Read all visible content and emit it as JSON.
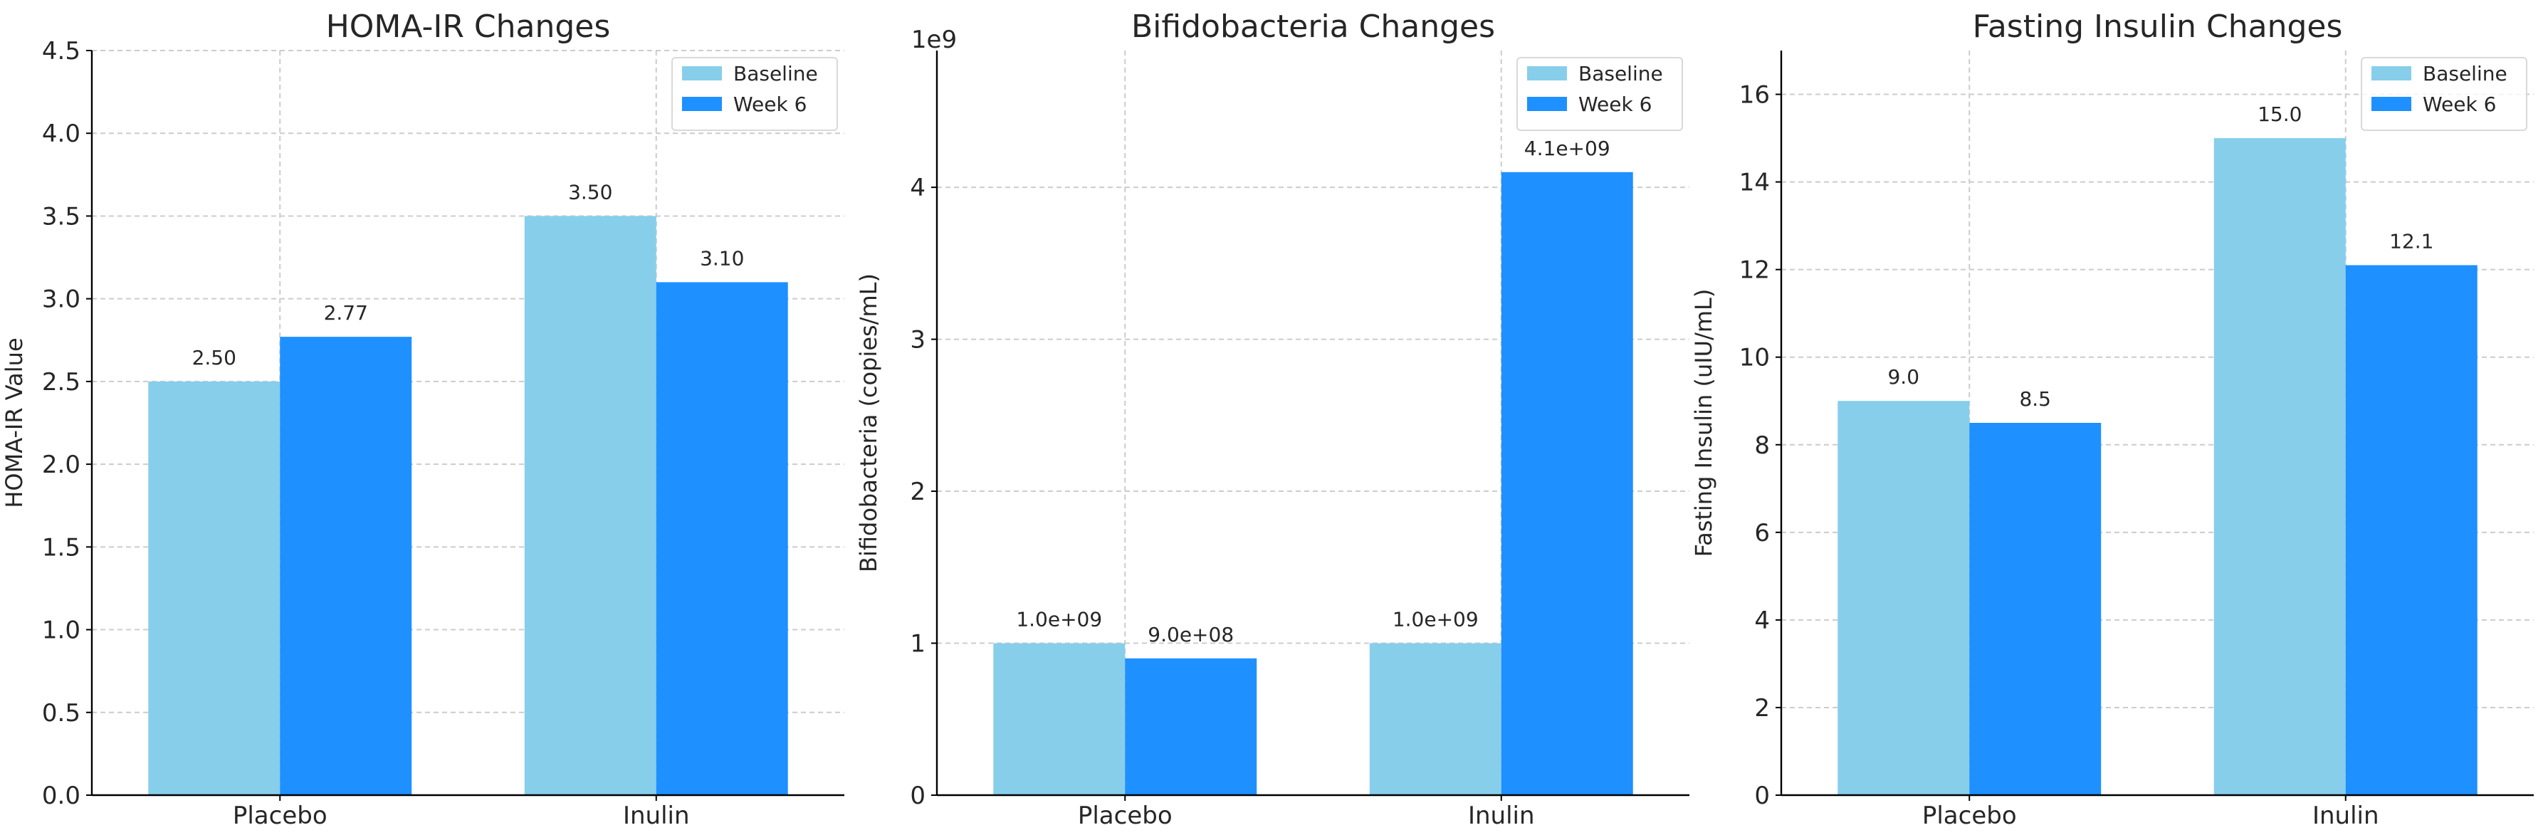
{
  "colors": {
    "baseline": "#87CEEB",
    "week6": "#1E90FF"
  },
  "chart_data": [
    {
      "type": "bar",
      "title": "HOMA-IR Changes",
      "xlabel": "",
      "ylabel": "HOMA-IR Value",
      "categories": [
        "Placebo",
        "Inulin"
      ],
      "series": [
        {
          "name": "Baseline",
          "values": [
            2.5,
            3.5
          ],
          "labels": [
            "2.50",
            "3.50"
          ]
        },
        {
          "name": "Week 6",
          "values": [
            2.77,
            3.1
          ],
          "labels": [
            "2.77",
            "3.10"
          ]
        }
      ],
      "ylim": [
        0,
        4.5
      ],
      "yticks": [
        0,
        0.5,
        1,
        1.5,
        2,
        2.5,
        3,
        3.5,
        4,
        4.5
      ],
      "ytick_labels": [
        "0.0",
        "0.5",
        "1.0",
        "1.5",
        "2.0",
        "2.5",
        "3.0",
        "3.5",
        "4.0",
        "4.5"
      ],
      "axis_multiplier": "",
      "grid": true,
      "legend": "top-right"
    },
    {
      "type": "bar",
      "title": "Bifidobacteria Changes",
      "xlabel": "",
      "ylabel": "Bifidobacteria (copies/mL)",
      "categories": [
        "Placebo",
        "Inulin"
      ],
      "series": [
        {
          "name": "Baseline",
          "values": [
            1000000000,
            1000000000
          ],
          "labels": [
            "1.0e+09",
            "1.0e+09"
          ]
        },
        {
          "name": "Week 6",
          "values": [
            900000000,
            4100000000
          ],
          "labels": [
            "9.0e+08",
            "4.1e+09"
          ]
        }
      ],
      "ylim": [
        0,
        4900000000
      ],
      "yticks": [
        0,
        1000000000,
        2000000000,
        3000000000,
        4000000000
      ],
      "ytick_labels": [
        "0",
        "1",
        "2",
        "3",
        "4"
      ],
      "axis_multiplier": "1e9",
      "grid": true,
      "legend": "top-right"
    },
    {
      "type": "bar",
      "title": "Fasting Insulin Changes",
      "xlabel": "",
      "ylabel": "Fasting Insulin (uIU/mL)",
      "categories": [
        "Placebo",
        "Inulin"
      ],
      "series": [
        {
          "name": "Baseline",
          "values": [
            9.0,
            15.0
          ],
          "labels": [
            "9.0",
            "15.0"
          ]
        },
        {
          "name": "Week 6",
          "values": [
            8.5,
            12.1
          ],
          "labels": [
            "8.5",
            "12.1"
          ]
        }
      ],
      "ylim": [
        0,
        17
      ],
      "yticks": [
        0,
        2,
        4,
        6,
        8,
        10,
        12,
        14,
        16
      ],
      "ytick_labels": [
        "0",
        "2",
        "4",
        "6",
        "8",
        "10",
        "12",
        "14",
        "16"
      ],
      "axis_multiplier": "",
      "grid": true,
      "legend": "top-right"
    }
  ]
}
